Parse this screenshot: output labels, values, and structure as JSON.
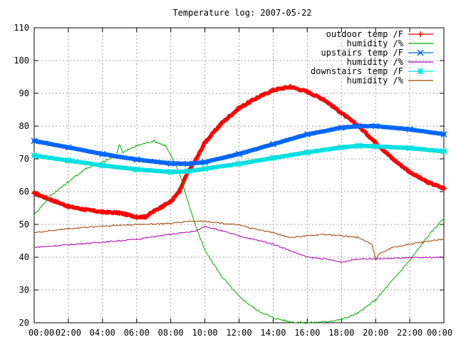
{
  "chart_data": {
    "type": "line",
    "title": "Temperature log: 2007-05-22",
    "xlabel": "",
    "ylabel": "",
    "xlim": [
      0,
      24
    ],
    "ylim": [
      20,
      110
    ],
    "grid": true,
    "legend_position": "top-right",
    "x_tick_labels": [
      "00:00",
      "02:00",
      "04:00",
      "06:00",
      "08:00",
      "10:00",
      "12:00",
      "14:00",
      "16:00",
      "18:00",
      "20:00",
      "22:00",
      "00:00"
    ],
    "y_tick_labels": [
      "20",
      "30",
      "40",
      "50",
      "60",
      "70",
      "80",
      "90",
      "100",
      "110"
    ],
    "series": [
      {
        "name": "outdoor temp /F",
        "color": "#ff0000",
        "marker": "plus",
        "x": [
          0,
          1,
          2,
          3,
          4,
          5,
          6,
          6.5,
          7,
          7.5,
          8,
          8.5,
          9,
          9.5,
          10,
          11,
          12,
          13,
          14,
          15,
          16,
          17,
          18,
          19,
          20,
          21,
          22,
          23,
          24
        ],
        "y": [
          59.5,
          57.5,
          55.5,
          54.5,
          53.8,
          53.5,
          52.3,
          52.3,
          54,
          55.5,
          57,
          60,
          66,
          70,
          75,
          81,
          85.5,
          88.5,
          91,
          92,
          90.5,
          88,
          84,
          80,
          75,
          70,
          66,
          63,
          61
        ]
      },
      {
        "name": "humidity /%",
        "color": "#00aa00",
        "marker": "none",
        "x": [
          0,
          1,
          2,
          3,
          4,
          4.8,
          5,
          5.2,
          6,
          7,
          7.7,
          8,
          8.5,
          9,
          9.5,
          10,
          11,
          12,
          13,
          14,
          15,
          16,
          17,
          18,
          19,
          19.5,
          20,
          21,
          22,
          23,
          24
        ],
        "y": [
          53,
          59,
          63,
          67,
          69,
          71,
          74.5,
          72,
          74,
          75.5,
          74,
          71,
          66,
          57,
          49,
          42,
          34,
          28,
          24,
          21.5,
          20.3,
          20,
          20.3,
          21,
          23,
          25,
          27,
          33,
          39,
          46,
          52
        ]
      },
      {
        "name": "upstairs temp /F",
        "color": "#0066ff",
        "marker": "x",
        "x": [
          0,
          2,
          4,
          6,
          8,
          9,
          10,
          12,
          14,
          16,
          18,
          19,
          20,
          22,
          24
        ],
        "y": [
          75.5,
          73.5,
          71.5,
          69.8,
          68.6,
          68.5,
          69,
          71.5,
          74.5,
          77.5,
          79.5,
          80,
          80,
          79,
          77.5
        ]
      },
      {
        "name": "humidity /%",
        "color": "#aa00aa",
        "marker": "none",
        "x": [
          0,
          2,
          4,
          6,
          8,
          9.5,
          10,
          11,
          12,
          14,
          15,
          16,
          17,
          18,
          19,
          20,
          22,
          24
        ],
        "y": [
          43,
          43.8,
          44.6,
          45.5,
          47,
          48,
          49.5,
          48,
          46.5,
          44,
          42,
          40,
          39.5,
          38.5,
          39.5,
          39.5,
          39.8,
          40
        ]
      },
      {
        "name": "downstairs temp /F",
        "color": "#00e0e0",
        "marker": "star",
        "x": [
          0,
          2,
          4,
          6,
          8,
          9,
          10,
          12,
          14,
          16,
          18,
          19,
          20,
          22,
          24
        ],
        "y": [
          71,
          69.5,
          68,
          66.8,
          66,
          66.2,
          67,
          68.5,
          70.3,
          72,
          73.5,
          74,
          73.8,
          73.3,
          72.3
        ]
      },
      {
        "name": "humidity /%",
        "color": "#a04000",
        "marker": "none",
        "x": [
          0,
          2,
          4,
          6,
          8,
          9,
          10,
          12,
          13,
          14,
          15,
          16,
          17,
          18,
          19,
          19.8,
          20,
          20.2,
          21,
          22,
          23,
          24
        ],
        "y": [
          47.5,
          48.7,
          49.5,
          50,
          50.3,
          51,
          51,
          49.8,
          48.5,
          47.5,
          46,
          46.5,
          47,
          46.5,
          46,
          44,
          39,
          41,
          43,
          44,
          44.8,
          45.5
        ]
      }
    ]
  }
}
